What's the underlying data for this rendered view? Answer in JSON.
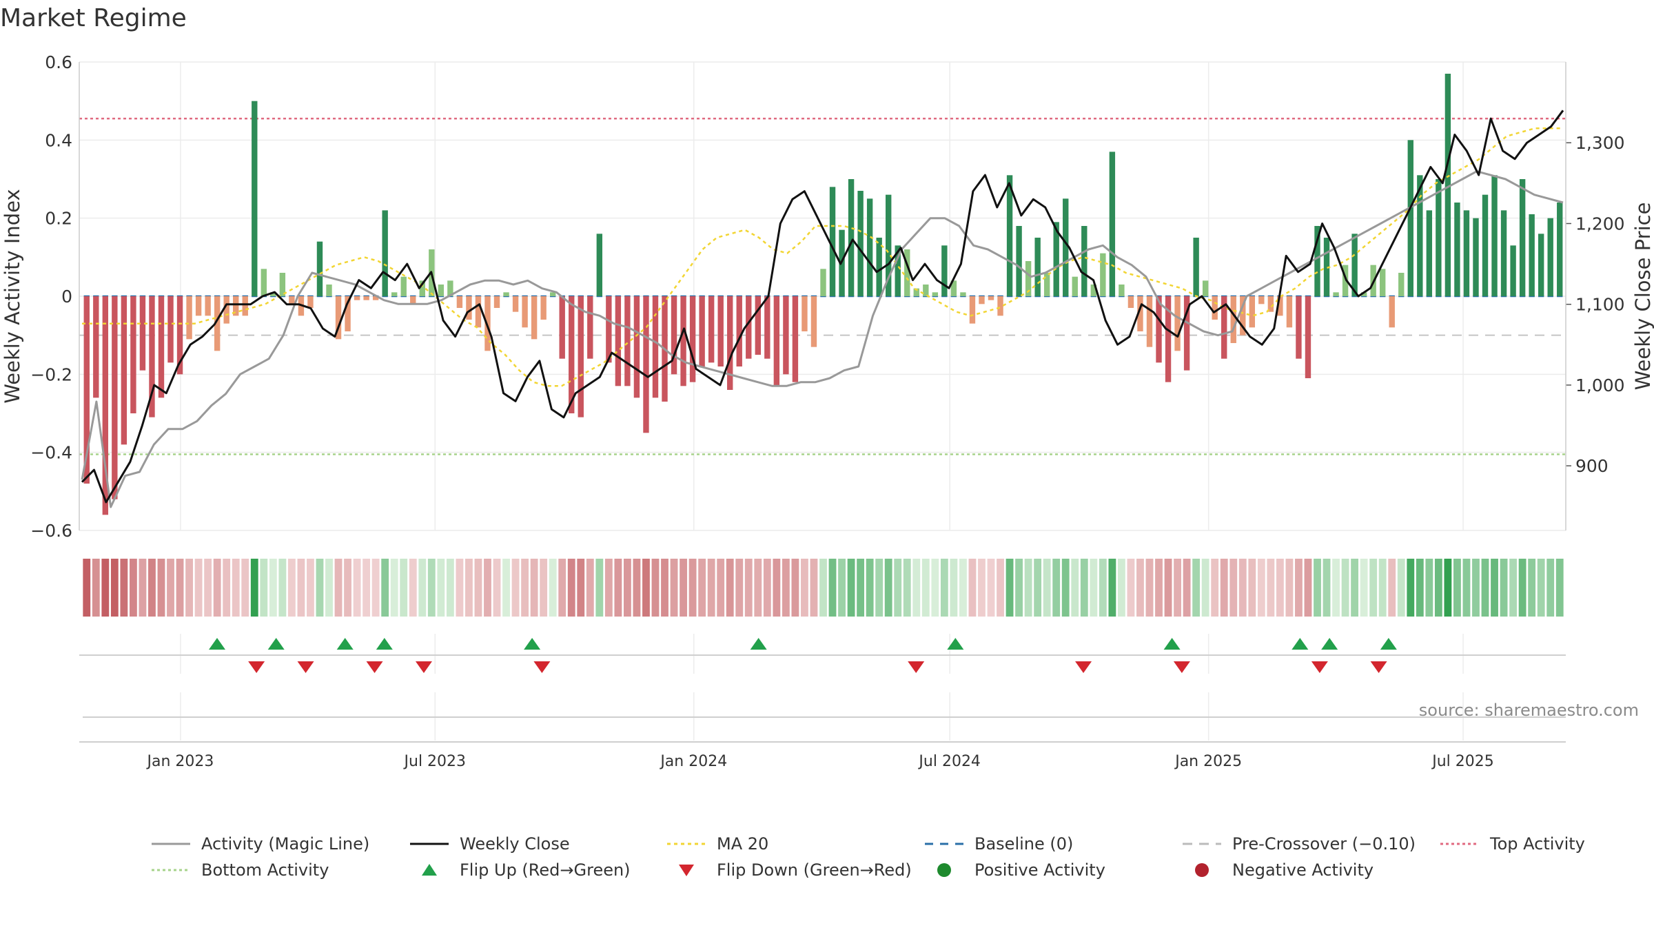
{
  "chart_data": {
    "type": "bar",
    "title": "Market Regime",
    "ylabel": "Weekly Activity Index",
    "y2label": "Weekly Close Price",
    "source": "source: sharemaestro.com",
    "ylim": [
      -0.6,
      0.6
    ],
    "y2lim": [
      820,
      1400
    ],
    "yticks": [
      "0.6",
      "0.4",
      "0.2",
      "0",
      "−0.2",
      "−0.4",
      "−0.6"
    ],
    "yticks_values": [
      0.6,
      0.4,
      0.2,
      0,
      -0.2,
      -0.4,
      -0.6
    ],
    "y2ticks": [
      "1,300",
      "1,200",
      "1,100",
      "1,000",
      "900"
    ],
    "y2ticks_values": [
      1300,
      1200,
      1100,
      1000,
      900
    ],
    "x_range": [
      "2022-10-21",
      "2025-09-12"
    ],
    "x_ticks": [
      {
        "date": "2023-01-01",
        "label": "Jan 2023"
      },
      {
        "date": "2023-07-01",
        "label": "Jul 2023"
      },
      {
        "date": "2024-01-01",
        "label": "Jan 2024"
      },
      {
        "date": "2024-07-01",
        "label": "Jul 2024"
      },
      {
        "date": "2025-01-01",
        "label": "Jan 2025"
      },
      {
        "date": "2025-07-01",
        "label": "Jul 2025"
      }
    ],
    "grid": true,
    "legend_position": "bottom",
    "reference_lines": {
      "top_activity": 0.455,
      "bottom_activity": -0.405,
      "pre_crossover": -0.1,
      "baseline": 0
    },
    "x_start": "2022-10-21",
    "activity_weekly": [
      -0.48,
      -0.26,
      -0.56,
      -0.52,
      -0.38,
      -0.3,
      -0.19,
      -0.31,
      -0.26,
      -0.17,
      -0.2,
      -0.11,
      -0.05,
      -0.05,
      -0.14,
      -0.07,
      -0.05,
      -0.05,
      0.5,
      0.07,
      0.01,
      0.06,
      -0.02,
      -0.05,
      -0.03,
      0.14,
      0.03,
      -0.11,
      -0.09,
      -0.01,
      -0.01,
      -0.01,
      0.22,
      0.01,
      0.05,
      -0.02,
      0.04,
      0.12,
      0.03,
      0.04,
      -0.03,
      -0.06,
      -0.08,
      -0.14,
      -0.03,
      0.01,
      -0.04,
      -0.08,
      -0.11,
      -0.06,
      0.01,
      -0.16,
      -0.3,
      -0.31,
      -0.16,
      0.16,
      -0.17,
      -0.23,
      -0.23,
      -0.26,
      -0.35,
      -0.26,
      -0.27,
      -0.2,
      -0.23,
      -0.22,
      -0.18,
      -0.17,
      -0.18,
      -0.24,
      -0.18,
      -0.16,
      -0.15,
      -0.16,
      -0.23,
      -0.2,
      -0.22,
      -0.09,
      -0.13,
      0.07,
      0.28,
      0.17,
      0.3,
      0.27,
      0.25,
      0.15,
      0.26,
      0.13,
      0.12,
      0.02,
      0.03,
      0.01,
      0.13,
      0.04,
      0.01,
      -0.07,
      -0.02,
      -0.01,
      -0.05,
      0.31,
      0.18,
      0.09,
      0.15,
      0.06,
      0.19,
      0.25,
      0.05,
      0.18,
      0.03,
      0.11,
      0.37,
      0.03,
      -0.03,
      -0.09,
      -0.13,
      -0.17,
      -0.22,
      -0.14,
      -0.19,
      0.15,
      0.04,
      -0.06,
      -0.16,
      -0.12,
      -0.1,
      -0.08,
      -0.02,
      -0.04,
      -0.05,
      -0.08,
      -0.16,
      -0.21,
      0.18,
      0.15,
      0.01,
      0.08,
      0.16,
      0.01,
      0.08,
      0.07,
      -0.08,
      0.06,
      0.4,
      0.31,
      0.22,
      0.3,
      0.57,
      0.24,
      0.22,
      0.2,
      0.26,
      0.31,
      0.22,
      0.13,
      0.3,
      0.21,
      0.16,
      0.2,
      0.24
    ],
    "magic_line": [
      -0.47,
      -0.27,
      -0.54,
      -0.46,
      -0.45,
      -0.38,
      -0.34,
      -0.34,
      -0.32,
      -0.28,
      -0.25,
      -0.2,
      -0.18,
      -0.16,
      -0.1,
      0,
      0.06,
      0.05,
      0.04,
      0.03,
      0.01,
      -0.01,
      -0.02,
      -0.02,
      -0.02,
      -0.01,
      0.01,
      0.03,
      0.04,
      0.04,
      0.03,
      0.04,
      0.02,
      0.01,
      -0.02,
      -0.04,
      -0.05,
      -0.07,
      -0.08,
      -0.1,
      -0.12,
      -0.15,
      -0.17,
      -0.18,
      -0.19,
      -0.2,
      -0.21,
      -0.22,
      -0.23,
      -0.23,
      -0.22,
      -0.22,
      -0.21,
      -0.19,
      -0.18,
      -0.05,
      0.04,
      0.12,
      0.16,
      0.2,
      0.2,
      0.18,
      0.13,
      0.12,
      0.1,
      0.08,
      0.05,
      0.06,
      0.08,
      0.1,
      0.12,
      0.13,
      0.1,
      0.08,
      0.05,
      -0.02,
      -0.05,
      -0.07,
      -0.09,
      -0.1,
      -0.09,
      0.0,
      0.02,
      0.04,
      0.06,
      0.08,
      0.1,
      0.12,
      0.14,
      0.16,
      0.18,
      0.2,
      0.22,
      0.24,
      0.26,
      0.28,
      0.3,
      0.32,
      0.31,
      0.3,
      0.28,
      0.26,
      0.25,
      0.24
    ],
    "weekly_close": [
      880,
      895,
      855,
      880,
      905,
      950,
      1000,
      990,
      1025,
      1050,
      1060,
      1075,
      1100,
      1100,
      1100,
      1110,
      1115,
      1100,
      1100,
      1095,
      1070,
      1060,
      1100,
      1130,
      1120,
      1140,
      1130,
      1150,
      1120,
      1140,
      1080,
      1060,
      1090,
      1100,
      1060,
      990,
      980,
      1010,
      1030,
      970,
      960,
      990,
      1000,
      1010,
      1040,
      1030,
      1020,
      1010,
      1020,
      1030,
      1070,
      1020,
      1010,
      1000,
      1040,
      1070,
      1090,
      1110,
      1200,
      1230,
      1240,
      1210,
      1180,
      1150,
      1180,
      1160,
      1140,
      1150,
      1170,
      1130,
      1150,
      1130,
      1120,
      1150,
      1240,
      1260,
      1220,
      1250,
      1210,
      1230,
      1220,
      1190,
      1170,
      1140,
      1130,
      1080,
      1050,
      1060,
      1100,
      1090,
      1070,
      1060,
      1100,
      1110,
      1090,
      1100,
      1080,
      1060,
      1050,
      1070,
      1160,
      1140,
      1150,
      1200,
      1170,
      1130,
      1110,
      1120,
      1150,
      1180,
      1210,
      1240,
      1270,
      1250,
      1310,
      1290,
      1260,
      1330,
      1290,
      1280,
      1300,
      1310,
      1320,
      1340
    ],
    "ma20": [
      -0.07,
      -0.07,
      -0.07,
      -0.07,
      -0.07,
      -0.07,
      -0.07,
      -0.07,
      -0.07,
      -0.06,
      -0.05,
      -0.04,
      -0.03,
      -0.02,
      0,
      0.02,
      0.04,
      0.06,
      0.08,
      0.09,
      0.1,
      0.09,
      0.07,
      0.05,
      0.03,
      0,
      -0.03,
      -0.06,
      -0.08,
      -0.12,
      -0.15,
      -0.19,
      -0.22,
      -0.23,
      -0.23,
      -0.21,
      -0.19,
      -0.17,
      -0.14,
      -0.11,
      -0.08,
      -0.03,
      0.02,
      0.07,
      0.12,
      0.15,
      0.16,
      0.17,
      0.15,
      0.12,
      0.11,
      0.14,
      0.18,
      0.18,
      0.18,
      0.17,
      0.15,
      0.12,
      0.07,
      0.02,
      0,
      -0.02,
      -0.04,
      -0.05,
      -0.04,
      -0.03,
      -0.01,
      0.01,
      0.04,
      0.07,
      0.09,
      0.1,
      0.09,
      0.08,
      0.06,
      0.05,
      0.04,
      0.03,
      0.02,
      0,
      -0.01,
      -0.03,
      -0.04,
      -0.05,
      -0.04,
      0.0,
      0.02,
      0.05,
      0.07,
      0.08,
      0.1,
      0.13,
      0.16,
      0.19,
      0.22,
      0.26,
      0.29,
      0.31,
      0.33,
      0.35,
      0.38,
      0.41,
      0.42,
      0.43,
      0.43,
      0.43
    ],
    "flip_up_dates": [
      "2023-01-27",
      "2023-03-10",
      "2023-04-28",
      "2023-05-26",
      "2023-09-08",
      "2024-02-16",
      "2024-07-05",
      "2024-12-06",
      "2025-03-07",
      "2025-03-28",
      "2025-05-09"
    ],
    "flip_down_dates": [
      "2023-02-24",
      "2023-03-31",
      "2023-05-19",
      "2023-06-23",
      "2023-09-15",
      "2024-06-07",
      "2024-10-04",
      "2024-12-13",
      "2025-03-21",
      "2025-05-02"
    ],
    "legend": [
      {
        "label": "Activity (Magic Line)",
        "kind": "line",
        "color": "#999999",
        "dash": ""
      },
      {
        "label": "Weekly Close",
        "kind": "line",
        "color": "#111111",
        "dash": ""
      },
      {
        "label": "MA 20",
        "kind": "line",
        "color": "#f2d533",
        "dash": "5,5"
      },
      {
        "label": "Baseline (0)",
        "kind": "line",
        "color": "#2a6fa8",
        "dash": "12,10"
      },
      {
        "label": "Pre-Crossover (−0.10)",
        "kind": "line",
        "color": "#bbbbbb",
        "dash": "14,10"
      },
      {
        "label": "Top Activity",
        "kind": "line",
        "color": "#e06a80",
        "dash": "4,4"
      },
      {
        "label": "Bottom Activity",
        "kind": "line",
        "color": "#a7d38b",
        "dash": "4,4"
      },
      {
        "label": "Flip Up (Red→Green)",
        "kind": "tri-up",
        "color": "#22a04b",
        "dash": ""
      },
      {
        "label": "Flip Down (Green→Red)",
        "kind": "tri-down",
        "color": "#d3262e",
        "dash": ""
      },
      {
        "label": "Positive Activity",
        "kind": "dot",
        "color": "#1e8a2e",
        "dash": ""
      },
      {
        "label": "Negative Activity",
        "kind": "dot",
        "color": "#b2222d",
        "dash": ""
      }
    ],
    "colors": {
      "pos_strong": "#2e8b57",
      "pos_light": "#8cc47e",
      "neg_strong": "#c9555e",
      "neg_light": "#e89a76",
      "grid": "#ececec",
      "axis": "#cccccc"
    }
  }
}
